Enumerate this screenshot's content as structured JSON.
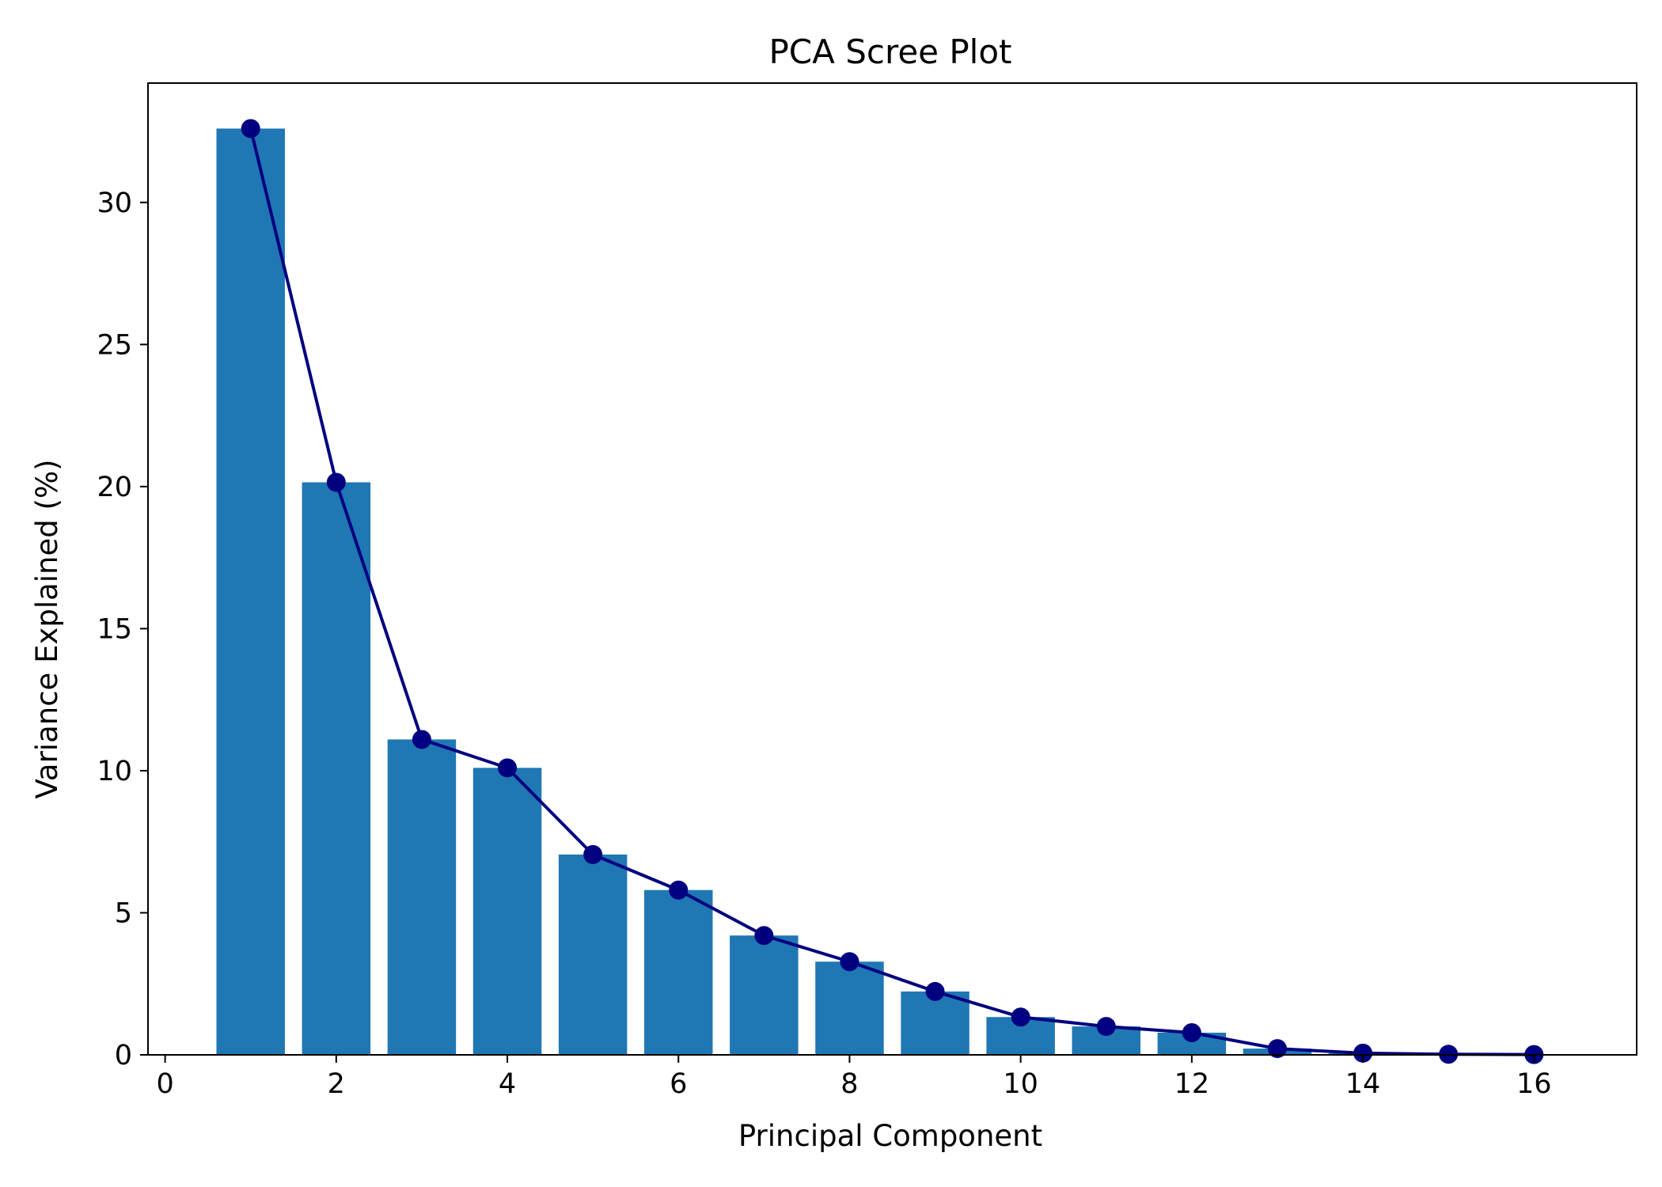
{
  "chart_data": {
    "type": "bar",
    "title": "PCA Scree Plot",
    "xlabel": "Principal Component",
    "ylabel": "Variance Explained (%)",
    "xlim": [
      -0.2,
      17.2
    ],
    "ylim": [
      0,
      34.2
    ],
    "xticks": [
      0,
      2,
      4,
      6,
      8,
      10,
      12,
      14,
      16
    ],
    "yticks": [
      0,
      5,
      10,
      15,
      20,
      25,
      30
    ],
    "grid": false,
    "legend": "none",
    "bar_width": 0.8,
    "bar_color": "#1f77b4",
    "line_color": "#000080",
    "x": [
      1,
      2,
      3,
      4,
      5,
      6,
      7,
      8,
      9,
      10,
      11,
      12,
      13,
      14,
      15,
      16
    ],
    "series": [
      {
        "type": "bar",
        "values": [
          32.6,
          20.15,
          11.1,
          10.1,
          7.05,
          5.8,
          4.2,
          3.28,
          2.23,
          1.33,
          1.0,
          0.78,
          0.22,
          0.06,
          0.02,
          0.01
        ]
      },
      {
        "type": "line",
        "marker": "circle",
        "values": [
          32.6,
          20.15,
          11.1,
          10.1,
          7.05,
          5.8,
          4.2,
          3.28,
          2.23,
          1.33,
          1.0,
          0.78,
          0.22,
          0.06,
          0.02,
          0.01
        ]
      }
    ]
  }
}
